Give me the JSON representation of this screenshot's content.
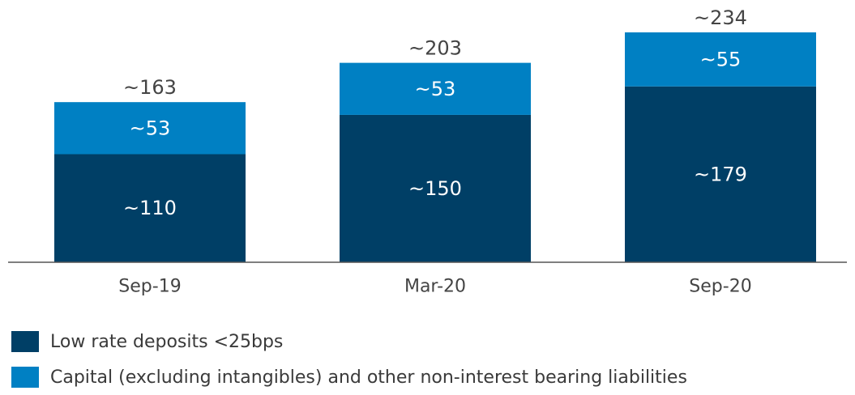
{
  "chart_data": {
    "type": "bar",
    "stacked": true,
    "categories": [
      "Sep-19",
      "Mar-20",
      "Sep-20"
    ],
    "series": [
      {
        "name": "Low rate deposits <25bps",
        "values": [
          110,
          150,
          179
        ],
        "labels": [
          "~110",
          "~150",
          "~179"
        ],
        "color": "#003f66"
      },
      {
        "name": "Capital (excluding intangibles) and other non-interest bearing liabilities",
        "values": [
          53,
          53,
          55
        ],
        "labels": [
          "~53",
          "~53",
          "~55"
        ],
        "color": "#0080c3"
      }
    ],
    "totals": [
      163,
      203,
      234
    ],
    "total_labels": [
      "~163",
      "~203",
      "~234"
    ],
    "ylim": [
      0,
      234
    ],
    "grid": false,
    "legend_position": "bottom-left"
  },
  "colors": {
    "inner_label": "#ffffff",
    "total_label": "#444444",
    "axis_line": "#555555",
    "tick_label": "#444444"
  }
}
